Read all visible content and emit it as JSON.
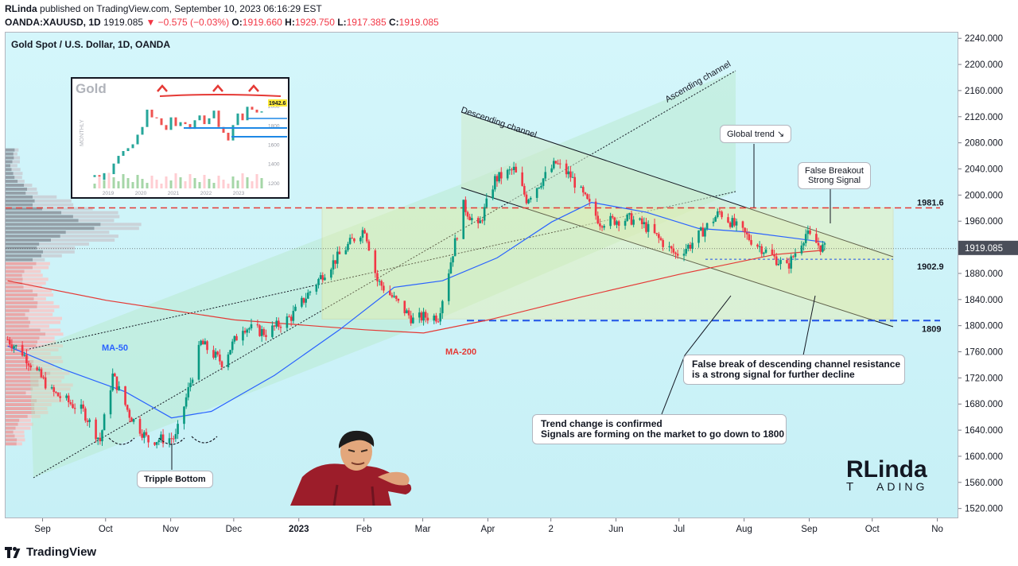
{
  "header": {
    "author": "RLinda",
    "published_text": "published on TradingView.com, September 10, 2023 06:16:29 EST",
    "symbol": "OANDA:XAUUSD, 1D",
    "last": "1919.085",
    "change": "−0.575 (−0.03%)",
    "o_label": "O:",
    "o": "1919.660",
    "h_label": "H:",
    "h": "1929.750",
    "l_label": "L:",
    "l": "1917.385",
    "c_label": "C:",
    "c": "1919.085"
  },
  "chart_title": "Gold Spot / U.S. Dollar, 1D, OANDA",
  "footer": {
    "brand": "TradingView"
  },
  "colors": {
    "up": "#089981",
    "down": "#f23645",
    "ma50": "#2962ff",
    "ma200": "#e53935",
    "resistance": "#e53935",
    "support": "#1e53e5"
  },
  "annotations": {
    "ascending_channel": "Ascending channel",
    "descending_channel": "Descending channel",
    "global_trend": "Global trend ↘",
    "false_breakout_1": "False Breakout",
    "false_breakout_2": "Strong Signal",
    "false_break_1": "False break of descending channel resistance",
    "false_break_2": "is a strong signal for further decline",
    "trend_change_1": "Trend change is confirmed",
    "trend_change_2": "Signals are forming on the market to go down to 1800",
    "triple_bottom": "Tripple Bottom",
    "ma50": "MA-50",
    "ma200": "MA-200",
    "level_1981": "1981.6",
    "level_1902": "1902.9",
    "level_1809": "1809",
    "price_badge": "1919.085"
  },
  "inset": {
    "title": "Gold",
    "side_label": "MONTHLY",
    "years": [
      "2019",
      "2020",
      "2021",
      "2022",
      "2023"
    ],
    "price_ticks": [
      "2000",
      "1800",
      "1600",
      "1400",
      "1200"
    ],
    "badge": "1942.6"
  },
  "logo": {
    "top": "RLinda",
    "bottom": "ADING",
    "t_letter": "T"
  },
  "chart_data": {
    "type": "candlestick",
    "title": "Gold Spot / U.S. Dollar, 1D, OANDA",
    "y_ticks": [
      2240,
      2200,
      2160,
      2120,
      2080,
      2040,
      2000,
      1960,
      1920,
      1880,
      1840,
      1800,
      1760,
      1720,
      1680,
      1640,
      1600,
      1560,
      1520
    ],
    "ylim": [
      1505,
      2250
    ],
    "x_ticks": [
      "Sep",
      "Oct",
      "Nov",
      "Dec",
      "2023",
      "Feb",
      "Mar",
      "Apr",
      "2",
      "Jun",
      "Jul",
      "Aug",
      "Sep",
      "Oct",
      "No"
    ],
    "x_start": "2022-08-14",
    "x_end": "2023-11-11",
    "x_tick_dates": [
      "2022-09-01",
      "2022-10-01",
      "2022-11-01",
      "2022-12-01",
      "2023-01-01",
      "2023-02-01",
      "2023-03-01",
      "2023-04-01",
      "2023-05-01",
      "2023-06-01",
      "2023-07-01",
      "2023-08-01",
      "2023-09-01",
      "2023-10-01",
      "2023-11-01"
    ],
    "keypoints": [
      [
        "2022-08-15",
        1780
      ],
      [
        "2022-08-22",
        1760
      ],
      [
        "2022-09-05",
        1700
      ],
      [
        "2022-09-20",
        1670
      ],
      [
        "2022-09-28",
        1625
      ],
      [
        "2022-10-04",
        1725
      ],
      [
        "2022-10-12",
        1665
      ],
      [
        "2022-10-21",
        1625
      ],
      [
        "2022-11-03",
        1630
      ],
      [
        "2022-11-15",
        1775
      ],
      [
        "2022-11-25",
        1745
      ],
      [
        "2022-12-05",
        1800
      ],
      [
        "2022-12-16",
        1790
      ],
      [
        "2022-12-28",
        1815
      ],
      [
        "2023-01-12",
        1880
      ],
      [
        "2023-01-27",
        1935
      ],
      [
        "2023-02-01",
        1950
      ],
      [
        "2023-02-07",
        1870
      ],
      [
        "2023-02-24",
        1810
      ],
      [
        "2023-03-01",
        1815
      ],
      [
        "2023-03-08",
        1815
      ],
      [
        "2023-03-20",
        1985
      ],
      [
        "2023-03-27",
        1950
      ],
      [
        "2023-04-04",
        2025
      ],
      [
        "2023-04-13",
        2040
      ],
      [
        "2023-04-19",
        1995
      ],
      [
        "2023-05-03",
        2050
      ],
      [
        "2023-05-10",
        2030
      ],
      [
        "2023-05-24",
        1960
      ],
      [
        "2023-06-07",
        1965
      ],
      [
        "2023-06-14",
        1955
      ],
      [
        "2023-06-29",
        1910
      ],
      [
        "2023-07-06",
        1925
      ],
      [
        "2023-07-20",
        1975
      ],
      [
        "2023-07-27",
        1955
      ],
      [
        "2023-08-03",
        1935
      ],
      [
        "2023-08-21",
        1890
      ],
      [
        "2023-08-30",
        1942
      ],
      [
        "2023-09-06",
        1922
      ],
      [
        "2023-09-08",
        1919
      ]
    ],
    "ma50": [
      [
        "2022-08-15",
        1770
      ],
      [
        "2022-09-10",
        1735
      ],
      [
        "2022-10-10",
        1700
      ],
      [
        "2022-11-01",
        1660
      ],
      [
        "2022-11-20",
        1670
      ],
      [
        "2022-12-20",
        1725
      ],
      [
        "2023-01-20",
        1795
      ],
      [
        "2023-02-15",
        1860
      ],
      [
        "2023-03-10",
        1870
      ],
      [
        "2023-04-05",
        1905
      ],
      [
        "2023-05-01",
        1960
      ],
      [
        "2023-05-20",
        1990
      ],
      [
        "2023-06-15",
        1975
      ],
      [
        "2023-07-10",
        1950
      ],
      [
        "2023-08-01",
        1945
      ],
      [
        "2023-08-25",
        1935
      ],
      [
        "2023-09-08",
        1929
      ]
    ],
    "ma200": [
      [
        "2022-08-15",
        1870
      ],
      [
        "2022-10-01",
        1840
      ],
      [
        "2022-12-01",
        1810
      ],
      [
        "2023-02-01",
        1795
      ],
      [
        "2023-03-01",
        1790
      ],
      [
        "2023-04-01",
        1810
      ],
      [
        "2023-05-15",
        1845
      ],
      [
        "2023-07-01",
        1880
      ],
      [
        "2023-08-15",
        1910
      ],
      [
        "2023-09-08",
        1917
      ]
    ],
    "levels": [
      1981.6,
      1902.9,
      1809
    ],
    "last_price": 1919.085
  }
}
